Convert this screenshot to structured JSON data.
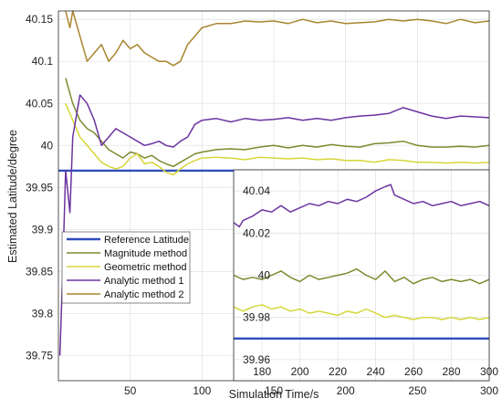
{
  "chart_data": {
    "type": "line",
    "title": "",
    "xlabel": "Simulation Time/s",
    "ylabel": "Estimated Latitude/degree",
    "xlim": [
      0,
      300
    ],
    "ylim": [
      39.72,
      40.16
    ],
    "x_ticks": [
      50,
      100,
      150,
      200,
      250,
      300
    ],
    "y_ticks": [
      39.75,
      39.8,
      39.85,
      39.9,
      39.95,
      40,
      40.05,
      40.1,
      40.15
    ],
    "x_tick_labels": [
      "50",
      "100",
      "150",
      "200",
      "250",
      "300"
    ],
    "y_tick_labels": [
      "39.75",
      "39.8",
      "39.85",
      "39.9",
      "39.95",
      "40",
      "40.05",
      "40.1",
      "40.15"
    ],
    "grid": true,
    "legend_position": "left",
    "series": [
      {
        "name": "Reference Latitude",
        "color": "#2f4dbd",
        "x": [
          0,
          300
        ],
        "y": [
          39.97,
          39.97
        ]
      },
      {
        "name": "Magnitude method",
        "color": "#7d8a2e",
        "x": [
          5,
          10,
          15,
          20,
          25,
          30,
          35,
          40,
          45,
          50,
          55,
          60,
          65,
          70,
          75,
          80,
          85,
          90,
          95,
          100,
          110,
          120,
          130,
          140,
          150,
          160,
          170,
          180,
          190,
          200,
          210,
          220,
          230,
          240,
          250,
          260,
          270,
          280,
          290,
          300
        ],
        "y": [
          40.08,
          40.05,
          40.03,
          40.02,
          40.015,
          40.005,
          39.995,
          39.99,
          39.985,
          39.992,
          39.99,
          39.985,
          39.988,
          39.982,
          39.978,
          39.975,
          39.98,
          39.985,
          39.99,
          39.992,
          39.995,
          39.996,
          39.995,
          39.998,
          40.0,
          39.997,
          40.0,
          39.998,
          40.001,
          39.999,
          39.998,
          40.002,
          40.003,
          40.005,
          40.0,
          39.998,
          39.998,
          39.999,
          39.998,
          40.0
        ]
      },
      {
        "name": "Geometric method",
        "color": "#d6d63a",
        "x": [
          5,
          10,
          15,
          20,
          25,
          30,
          35,
          40,
          45,
          50,
          55,
          60,
          65,
          70,
          75,
          80,
          85,
          90,
          95,
          100,
          110,
          120,
          130,
          140,
          150,
          160,
          170,
          180,
          190,
          200,
          210,
          220,
          230,
          240,
          250,
          260,
          270,
          280,
          290,
          300
        ],
        "y": [
          40.05,
          40.03,
          40.01,
          40.0,
          39.99,
          39.98,
          39.975,
          39.972,
          39.975,
          39.985,
          39.99,
          39.978,
          39.98,
          39.975,
          39.968,
          39.965,
          39.972,
          39.978,
          39.982,
          39.985,
          39.986,
          39.985,
          39.983,
          39.986,
          39.985,
          39.984,
          39.985,
          39.983,
          39.984,
          39.982,
          39.982,
          39.98,
          39.983,
          39.982,
          39.98,
          39.98,
          39.979,
          39.98,
          39.979,
          39.98
        ]
      },
      {
        "name": "Analytic method 1",
        "color": "#6b33a0",
        "x": [
          1,
          3,
          5,
          8,
          10,
          15,
          20,
          25,
          30,
          35,
          40,
          45,
          50,
          55,
          60,
          65,
          70,
          75,
          80,
          85,
          90,
          95,
          100,
          110,
          120,
          130,
          140,
          150,
          160,
          170,
          180,
          190,
          200,
          210,
          220,
          230,
          240,
          250,
          260,
          270,
          280,
          290,
          300
        ],
        "y": [
          39.75,
          39.85,
          39.97,
          39.92,
          40.01,
          40.06,
          40.05,
          40.03,
          40.0,
          40.01,
          40.02,
          40.015,
          40.01,
          40.005,
          40.0,
          40.002,
          40.005,
          40.0,
          39.998,
          40.005,
          40.01,
          40.025,
          40.03,
          40.032,
          40.028,
          40.032,
          40.03,
          40.031,
          40.033,
          40.03,
          40.032,
          40.03,
          40.033,
          40.035,
          40.036,
          40.038,
          40.045,
          40.04,
          40.035,
          40.032,
          40.035,
          40.034,
          40.033
        ]
      },
      {
        "name": "Analytic method 2",
        "color": "#a8862e",
        "x": [
          5,
          8,
          10,
          15,
          20,
          25,
          30,
          35,
          40,
          45,
          50,
          55,
          60,
          65,
          70,
          75,
          80,
          85,
          90,
          95,
          100,
          110,
          120,
          130,
          140,
          150,
          160,
          170,
          180,
          190,
          200,
          210,
          220,
          230,
          240,
          250,
          260,
          270,
          280,
          290,
          300
        ],
        "y": [
          40.16,
          40.14,
          40.16,
          40.13,
          40.1,
          40.11,
          40.12,
          40.1,
          40.11,
          40.125,
          40.115,
          40.12,
          40.11,
          40.105,
          40.1,
          40.1,
          40.095,
          40.1,
          40.12,
          40.13,
          40.14,
          40.145,
          40.145,
          40.148,
          40.147,
          40.148,
          40.145,
          40.15,
          40.146,
          40.148,
          40.145,
          40.146,
          40.147,
          40.15,
          40.148,
          40.15,
          40.148,
          40.145,
          40.15,
          40.146,
          40.148
        ]
      }
    ],
    "inset": {
      "xlim": [
        165,
        300
      ],
      "ylim": [
        39.95,
        40.05
      ],
      "x_ticks": [
        180,
        200,
        220,
        240,
        260,
        280,
        300
      ],
      "y_ticks": [
        39.96,
        39.98,
        40,
        40.02,
        40.04
      ],
      "x_tick_labels": [
        "180",
        "200",
        "220",
        "240",
        "260",
        "280",
        "300"
      ],
      "y_tick_labels": [
        "39.96",
        "39.98",
        "40",
        "40.02",
        "40.04"
      ],
      "series": [
        {
          "name": "Reference Latitude",
          "color": "#2f4dbd",
          "x": [
            165,
            300
          ],
          "y": [
            39.97,
            39.97
          ]
        },
        {
          "name": "Magnitude method",
          "color": "#7d8a2e",
          "x": [
            165,
            170,
            175,
            180,
            185,
            190,
            195,
            200,
            205,
            210,
            215,
            220,
            225,
            230,
            235,
            240,
            245,
            250,
            255,
            260,
            265,
            270,
            275,
            280,
            285,
            290,
            295,
            300
          ],
          "y": [
            40.0,
            39.998,
            39.999,
            39.998,
            40.0,
            40.002,
            39.999,
            39.997,
            40.0,
            39.998,
            39.999,
            40.0,
            40.001,
            40.003,
            40.0,
            39.998,
            40.002,
            39.997,
            39.999,
            39.996,
            39.998,
            39.999,
            39.997,
            39.998,
            39.997,
            39.998,
            39.996,
            39.998
          ]
        },
        {
          "name": "Geometric method",
          "color": "#d6d63a",
          "x": [
            165,
            170,
            175,
            180,
            185,
            190,
            195,
            200,
            205,
            210,
            215,
            220,
            225,
            230,
            235,
            240,
            245,
            250,
            255,
            260,
            265,
            270,
            275,
            280,
            285,
            290,
            295,
            300
          ],
          "y": [
            39.985,
            39.983,
            39.985,
            39.986,
            39.984,
            39.985,
            39.983,
            39.984,
            39.982,
            39.983,
            39.982,
            39.981,
            39.983,
            39.982,
            39.984,
            39.982,
            39.98,
            39.981,
            39.98,
            39.979,
            39.98,
            39.98,
            39.979,
            39.98,
            39.979,
            39.98,
            39.979,
            39.98
          ]
        },
        {
          "name": "Analytic method 1",
          "color": "#6b33a0",
          "x": [
            165,
            168,
            170,
            175,
            180,
            185,
            190,
            195,
            200,
            205,
            210,
            215,
            220,
            225,
            230,
            235,
            240,
            245,
            248,
            250,
            255,
            260,
            265,
            270,
            275,
            280,
            285,
            290,
            295,
            300
          ],
          "y": [
            40.025,
            40.023,
            40.026,
            40.028,
            40.031,
            40.03,
            40.033,
            40.03,
            40.032,
            40.034,
            40.033,
            40.035,
            40.034,
            40.036,
            40.035,
            40.037,
            40.04,
            40.042,
            40.043,
            40.038,
            40.036,
            40.034,
            40.035,
            40.033,
            40.034,
            40.035,
            40.033,
            40.034,
            40.035,
            40.033
          ]
        }
      ]
    }
  }
}
